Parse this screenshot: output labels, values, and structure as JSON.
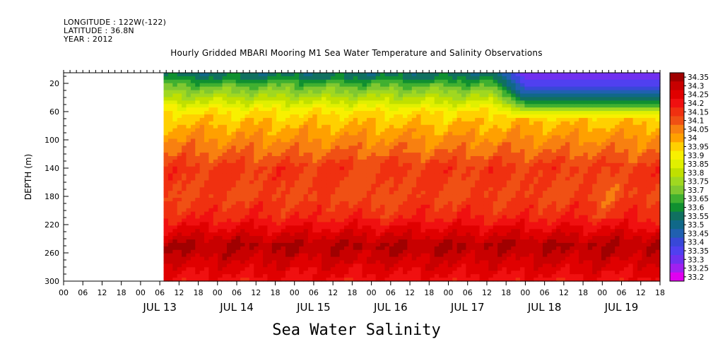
{
  "header": {
    "longitude": "LONGITUDE : 122W(-122)",
    "latitude": "LATITUDE : 36.8N",
    "year": "YEAR : 2012"
  },
  "chart_data": {
    "type": "heatmap",
    "title": "Hourly Gridded MBARI Mooring M1 Sea Water Temperature and Salinity Observations",
    "xlabel": "Sea Water Salinity",
    "ylabel": "DEPTH (m)",
    "y_ticks": [
      20,
      60,
      100,
      140,
      180,
      220,
      260,
      300
    ],
    "ylim": [
      300,
      5
    ],
    "x_hour_tick_labels": [
      "00",
      "06",
      "12",
      "18",
      "00",
      "06",
      "12",
      "18",
      "00",
      "06",
      "12",
      "18",
      "00",
      "06",
      "12",
      "18",
      "00",
      "06",
      "12",
      "18",
      "00",
      "06",
      "12",
      "18",
      "00",
      "06",
      "12",
      "18",
      "00",
      "06",
      "12",
      "18"
    ],
    "x_day_labels": [
      "JUL 13",
      "JUL 14",
      "JUL 15",
      "JUL 16",
      "JUL 17",
      "JUL 18",
      "JUL 19"
    ],
    "xlim_days_from_jul12_00": [
      0,
      7.75
    ],
    "data_start_days_from_jul12_00": 1.3,
    "colorbar": {
      "labels": [
        "34.35",
        "34.3",
        "34.25",
        "34.2",
        "34.15",
        "34.1",
        "34.05",
        "34",
        "33.95",
        "33.9",
        "33.85",
        "33.8",
        "33.75",
        "33.7",
        "33.65",
        "33.6",
        "33.55",
        "33.5",
        "33.45",
        "33.4",
        "33.35",
        "33.3",
        "33.25",
        "33.2"
      ],
      "colors": [
        "#a00000",
        "#c80000",
        "#e00000",
        "#f01010",
        "#f03010",
        "#f05014",
        "#f88010",
        "#ffa000",
        "#ffd000",
        "#f8f000",
        "#e0f000",
        "#c0e000",
        "#a0d820",
        "#80c830",
        "#40b030",
        "#109030",
        "#107060",
        "#106888",
        "#2060b0",
        "#3848d8",
        "#5040f0",
        "#7030f0",
        "#a020f0",
        "#e000f0"
      ]
    },
    "depth_profile": [
      {
        "depth": 10,
        "value": 33.55
      },
      {
        "depth": 20,
        "value": 33.65
      },
      {
        "depth": 40,
        "value": 33.78
      },
      {
        "depth": 60,
        "value": 33.92
      },
      {
        "depth": 80,
        "value": 33.98
      },
      {
        "depth": 100,
        "value": 34.03
      },
      {
        "depth": 120,
        "value": 34.08
      },
      {
        "depth": 140,
        "value": 34.14
      },
      {
        "depth": 180,
        "value": 34.12
      },
      {
        "depth": 210,
        "value": 34.17
      },
      {
        "depth": 230,
        "value": 34.25
      },
      {
        "depth": 250,
        "value": 34.33
      },
      {
        "depth": 270,
        "value": 34.28
      },
      {
        "depth": 300,
        "value": 34.2
      }
    ],
    "low_salinity_event": {
      "start_day": 5.6,
      "min_value": 33.35,
      "max_depth": 70
    }
  }
}
